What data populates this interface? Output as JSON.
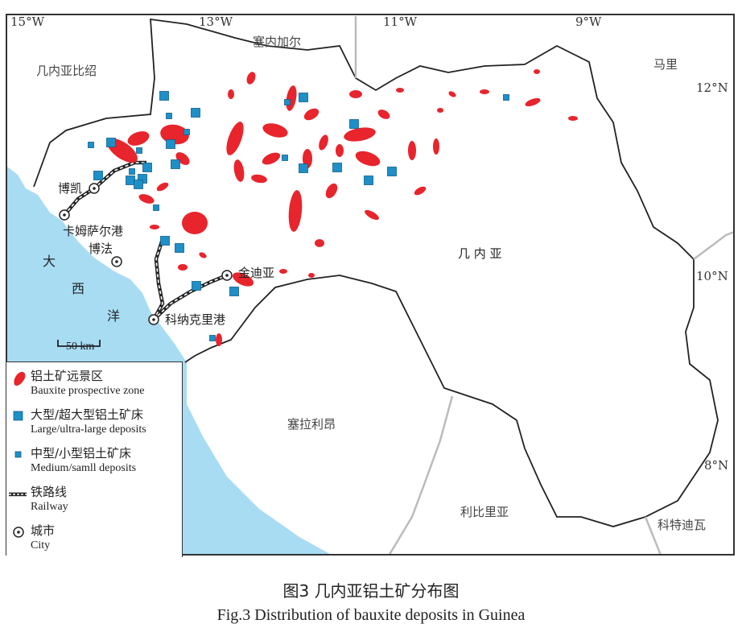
{
  "map": {
    "longitude_ticks": [
      "15°W",
      "13°W",
      "11°W",
      "9°W"
    ],
    "latitude_ticks": [
      "12°N",
      "10°N",
      "8°N"
    ],
    "countries": {
      "guinea_bissau": "几内亚比绍",
      "senegal": "塞内加尔",
      "mali": "马里",
      "guinea": "几 内 亚",
      "sierra_leone": "塞拉利昂",
      "liberia": "利比里亚",
      "cote_divoire": "科特迪瓦"
    },
    "ocean": [
      "大",
      "西",
      "洋"
    ],
    "cities": {
      "boke": "博凯",
      "kamsar": "卡姆萨尔港",
      "boffa": "博法",
      "kindia": "金迪亚",
      "conakry": "科纳克里港"
    },
    "scale_bar": "50 km",
    "colors": {
      "ocean": "#a8dcf3",
      "bauxite_zone": "#e8242c",
      "deposit": "#1f8fc8",
      "border": "#222222",
      "neighbor_border": "#bbbbbb"
    }
  },
  "legend": {
    "bauxite_zh": "铝土矿远景区",
    "bauxite_en": "Bauxite prospective zone",
    "large_zh": "大型/超大型铝土矿床",
    "large_en": "Large/ultra-large deposits",
    "medium_zh": "中型/小型铝土矿床",
    "medium_en": "Medium/samll deposits",
    "railway_zh": "铁路线",
    "railway_en": "Railway",
    "city_zh": "城市",
    "city_en": "City"
  },
  "caption": {
    "zh": "图3  几内亚铝土矿分布图",
    "en": "Fig.3  Distribution of bauxite deposits in Guinea"
  }
}
